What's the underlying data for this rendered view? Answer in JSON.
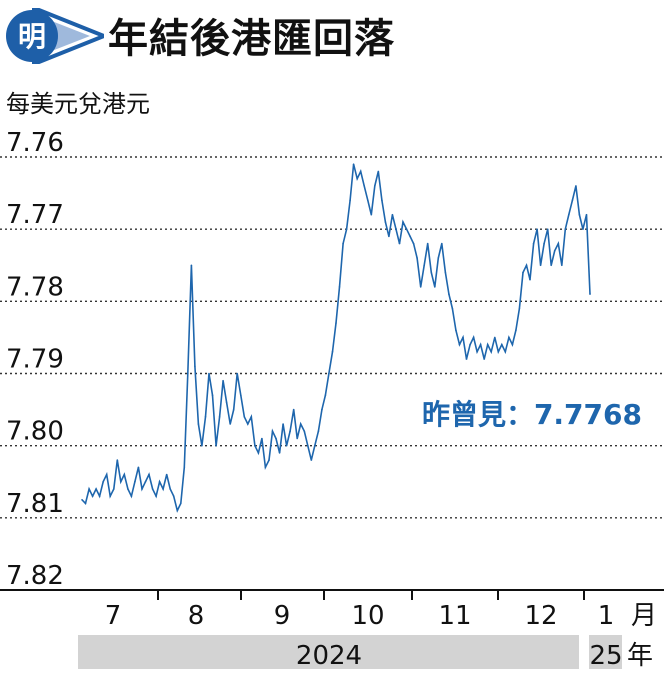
{
  "header": {
    "logo_char": "明",
    "title": "年結後港匯回落"
  },
  "unit_label": "每美元兌港元",
  "colors": {
    "line": "#1e66ad",
    "annotation": "#1e66ad",
    "logo_blue": "#1e5fa8",
    "year_band": "#d3d3d3"
  },
  "chart_data": {
    "type": "line",
    "title": "年結後港匯回落",
    "ylabel": "每美元兌港元",
    "y_inverted": true,
    "ylim": [
      7.76,
      7.82
    ],
    "y_ticks": [
      "7.76",
      "7.77",
      "7.78",
      "7.79",
      "7.80",
      "7.81",
      "7.82"
    ],
    "x_month_labels": [
      "7",
      "8",
      "9",
      "10",
      "11",
      "12",
      "1",
      "月"
    ],
    "year_labels": [
      "2024",
      "25",
      "年"
    ],
    "grid": "dotted horizontal",
    "annotation": "昨曾見：7.7768",
    "series": [
      {
        "values": [
          7.8075,
          7.808,
          7.806,
          7.807,
          7.806,
          7.807,
          7.805,
          7.804,
          7.807,
          7.806,
          7.802,
          7.805,
          7.804,
          7.806,
          7.807,
          7.805,
          7.803,
          7.806,
          7.805,
          7.804,
          7.806,
          7.807,
          7.805,
          7.806,
          7.804,
          7.806,
          7.807,
          7.809,
          7.808,
          7.803,
          7.79,
          7.775,
          7.789,
          7.797,
          7.8,
          7.796,
          7.79,
          7.793,
          7.8,
          7.796,
          7.791,
          7.794,
          7.797,
          7.795,
          7.79,
          7.793,
          7.796,
          7.797,
          7.796,
          7.8,
          7.801,
          7.799,
          7.803,
          7.802,
          7.798,
          7.799,
          7.801,
          7.797,
          7.8,
          7.798,
          7.795,
          7.799,
          7.797,
          7.798,
          7.8,
          7.802,
          7.8,
          7.798,
          7.795,
          7.793,
          7.79,
          7.787,
          7.783,
          7.778,
          7.772,
          7.77,
          7.766,
          7.761,
          7.763,
          7.762,
          7.764,
          7.766,
          7.768,
          7.764,
          7.762,
          7.766,
          7.769,
          7.771,
          7.768,
          7.77,
          7.772,
          7.769,
          7.77,
          7.771,
          7.772,
          7.774,
          7.778,
          7.775,
          7.772,
          7.776,
          7.778,
          7.774,
          7.772,
          7.776,
          7.779,
          7.781,
          7.784,
          7.786,
          7.785,
          7.788,
          7.786,
          7.785,
          7.787,
          7.786,
          7.788,
          7.786,
          7.787,
          7.785,
          7.787,
          7.786,
          7.787,
          7.785,
          7.786,
          7.784,
          7.781,
          7.776,
          7.775,
          7.777,
          7.772,
          7.77,
          7.775,
          7.772,
          7.77,
          7.775,
          7.773,
          7.772,
          7.775,
          7.77,
          7.768,
          7.766,
          7.764,
          7.768,
          7.77,
          7.768,
          7.779
        ]
      }
    ]
  }
}
